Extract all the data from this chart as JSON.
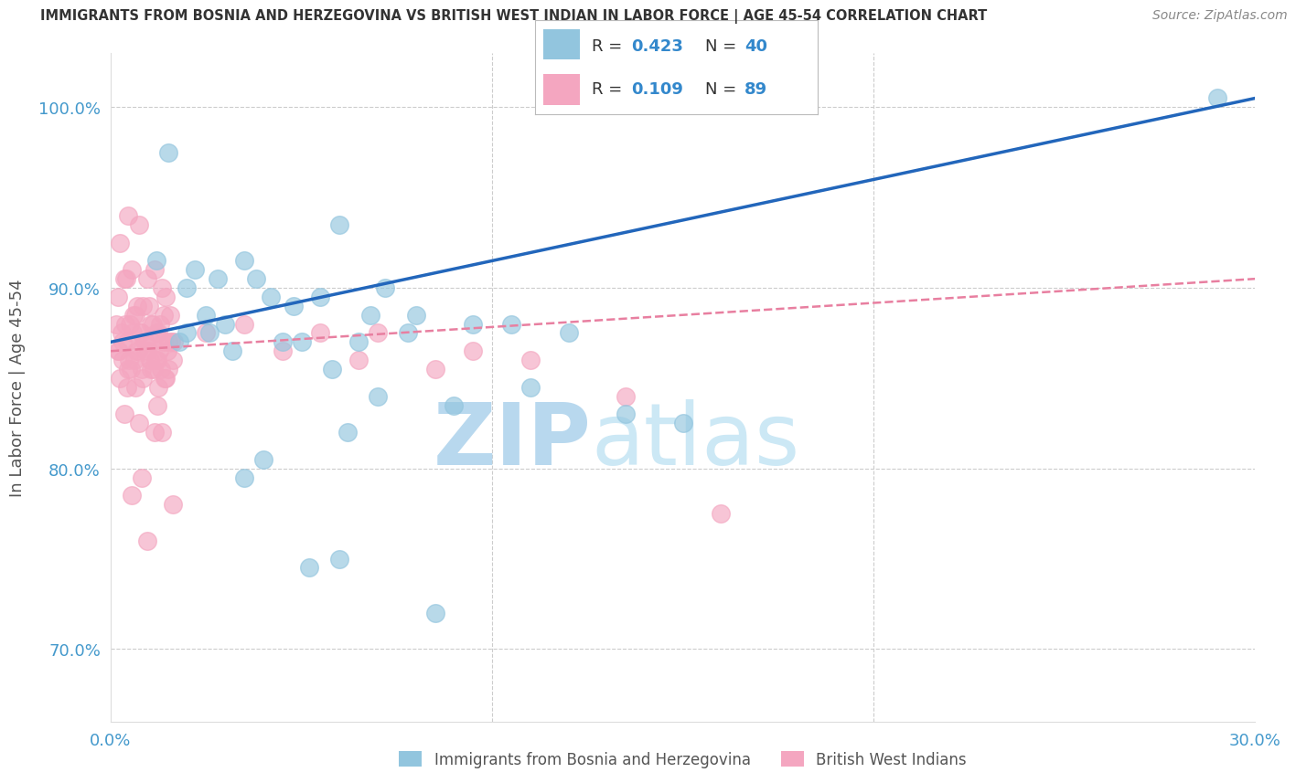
{
  "title": "IMMIGRANTS FROM BOSNIA AND HERZEGOVINA VS BRITISH WEST INDIAN IN LABOR FORCE | AGE 45-54 CORRELATION CHART",
  "source": "Source: ZipAtlas.com",
  "ylabel": "In Labor Force | Age 45-54",
  "xlim": [
    0.0,
    30.0
  ],
  "ylim": [
    66.0,
    103.0
  ],
  "color_bosnia": "#92c5de",
  "color_bwi": "#f4a6c0",
  "watermark_zip": "ZIP",
  "watermark_atlas": "atlas",
  "watermark_color": "#cce5f5",
  "background_color": "#ffffff",
  "grid_color": "#cccccc",
  "bosnia_x": [
    2.5,
    1.5,
    6.0,
    3.8,
    1.2,
    2.0,
    2.2,
    3.5,
    4.8,
    2.8,
    5.5,
    7.2,
    3.0,
    4.2,
    2.0,
    1.8,
    6.8,
    2.6,
    9.5,
    4.5,
    8.0,
    5.0,
    3.2,
    6.5,
    7.8,
    10.5,
    12.0,
    5.8,
    7.0,
    9.0,
    11.0,
    13.5,
    6.2,
    4.0,
    3.5,
    15.0,
    8.5,
    5.2,
    6.0,
    29.0
  ],
  "bosnia_y": [
    88.5,
    97.5,
    93.5,
    90.5,
    91.5,
    90.0,
    91.0,
    91.5,
    89.0,
    90.5,
    89.5,
    90.0,
    88.0,
    89.5,
    87.5,
    87.0,
    88.5,
    87.5,
    88.0,
    87.0,
    88.5,
    87.0,
    86.5,
    87.0,
    87.5,
    88.0,
    87.5,
    85.5,
    84.0,
    83.5,
    84.5,
    83.0,
    82.0,
    80.5,
    79.5,
    82.5,
    72.0,
    74.5,
    75.0,
    100.5
  ],
  "bwi_x": [
    0.15,
    0.25,
    0.35,
    0.45,
    0.55,
    0.65,
    0.75,
    0.85,
    0.95,
    1.05,
    1.15,
    1.25,
    1.35,
    1.45,
    1.55,
    1.65,
    0.2,
    0.3,
    0.4,
    0.5,
    0.6,
    0.7,
    0.8,
    0.9,
    1.0,
    1.1,
    1.2,
    1.3,
    1.4,
    1.5,
    0.18,
    0.28,
    0.38,
    0.48,
    0.58,
    0.68,
    0.78,
    0.88,
    0.98,
    1.08,
    1.18,
    1.28,
    1.38,
    1.48,
    1.58,
    0.22,
    0.32,
    0.42,
    0.52,
    0.62,
    0.72,
    0.82,
    0.92,
    1.02,
    1.12,
    1.22,
    1.32,
    1.42,
    1.52,
    1.62,
    0.25,
    0.45,
    0.65,
    0.85,
    1.05,
    1.25,
    1.45,
    3.5,
    5.5,
    7.0,
    9.5,
    11.0,
    4.5,
    6.5,
    8.5,
    13.5,
    2.5,
    16.0,
    0.35,
    0.75,
    1.15,
    0.55,
    0.95,
    1.35,
    0.42,
    0.82,
    1.22,
    1.62
  ],
  "bwi_y": [
    88.0,
    92.5,
    90.5,
    94.0,
    91.0,
    88.5,
    93.5,
    89.0,
    90.5,
    88.0,
    91.0,
    87.5,
    90.0,
    89.5,
    88.5,
    87.0,
    89.5,
    87.0,
    90.5,
    88.0,
    88.5,
    89.0,
    87.5,
    87.0,
    89.0,
    88.0,
    87.5,
    88.0,
    88.5,
    87.0,
    86.5,
    87.5,
    88.0,
    86.0,
    87.5,
    86.5,
    87.5,
    87.0,
    86.5,
    87.0,
    86.0,
    86.5,
    87.0,
    86.5,
    87.0,
    86.5,
    86.0,
    87.0,
    85.5,
    86.0,
    86.5,
    85.5,
    86.5,
    86.0,
    85.5,
    86.0,
    85.5,
    85.0,
    85.5,
    86.0,
    85.0,
    85.5,
    84.5,
    85.0,
    85.5,
    84.5,
    85.0,
    88.0,
    87.5,
    87.5,
    86.5,
    86.0,
    86.5,
    86.0,
    85.5,
    84.0,
    87.5,
    77.5,
    83.0,
    82.5,
    82.0,
    78.5,
    76.0,
    82.0,
    84.5,
    79.5,
    83.5,
    78.0
  ]
}
